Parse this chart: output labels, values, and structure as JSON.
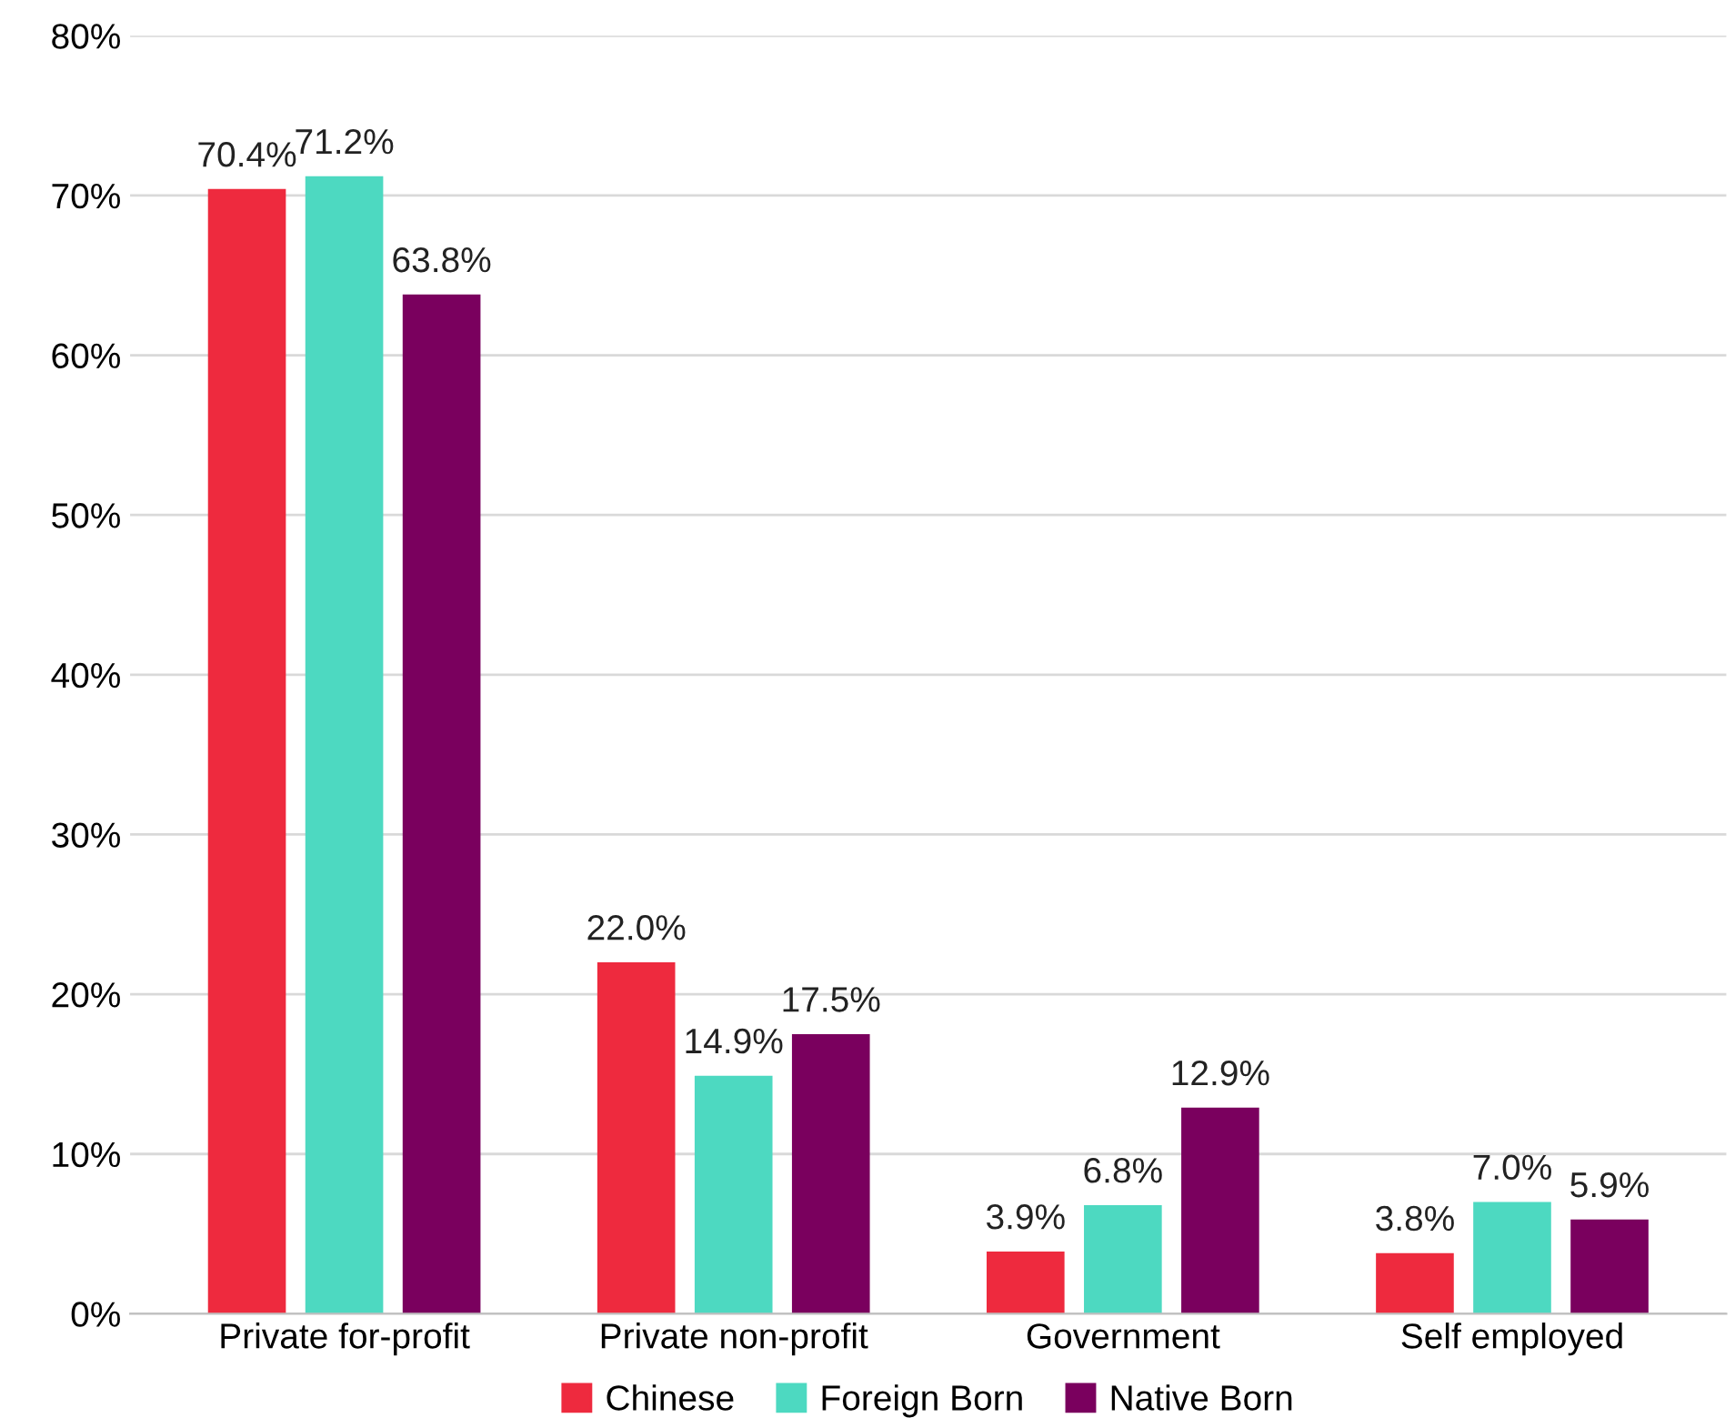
{
  "chart_data": {
    "type": "bar",
    "categories": [
      "Private for-profit",
      "Private non-profit",
      "Government",
      "Self employed"
    ],
    "series": [
      {
        "name": "Chinese",
        "color": "#ee2a3e",
        "values": [
          70.4,
          22.0,
          3.9,
          3.8
        ],
        "value_labels": [
          "70.4%",
          "22.0%",
          "3.9%",
          "3.8%"
        ]
      },
      {
        "name": "Foreign Born",
        "color": "#4dd9c1",
        "values": [
          71.2,
          14.9,
          6.8,
          7.0
        ],
        "value_labels": [
          "71.2%",
          "14.9%",
          "6.8%",
          "7.0%"
        ]
      },
      {
        "name": "Native Born",
        "color": "#7a005e",
        "values": [
          63.8,
          17.5,
          12.9,
          5.9
        ],
        "value_labels": [
          "63.8%",
          "17.5%",
          "12.9%",
          "5.9%"
        ]
      }
    ],
    "ylim": [
      0,
      80
    ],
    "yticks": [
      {
        "value": 0,
        "label": "0%"
      },
      {
        "value": 10,
        "label": "10%"
      },
      {
        "value": 20,
        "label": "20%"
      },
      {
        "value": 30,
        "label": "30%"
      },
      {
        "value": 40,
        "label": "40%"
      },
      {
        "value": 50,
        "label": "50%"
      },
      {
        "value": 60,
        "label": "60%"
      },
      {
        "value": 70,
        "label": "70%"
      },
      {
        "value": 80,
        "label": "80%"
      }
    ],
    "grid": "y",
    "legend": "bottom"
  }
}
